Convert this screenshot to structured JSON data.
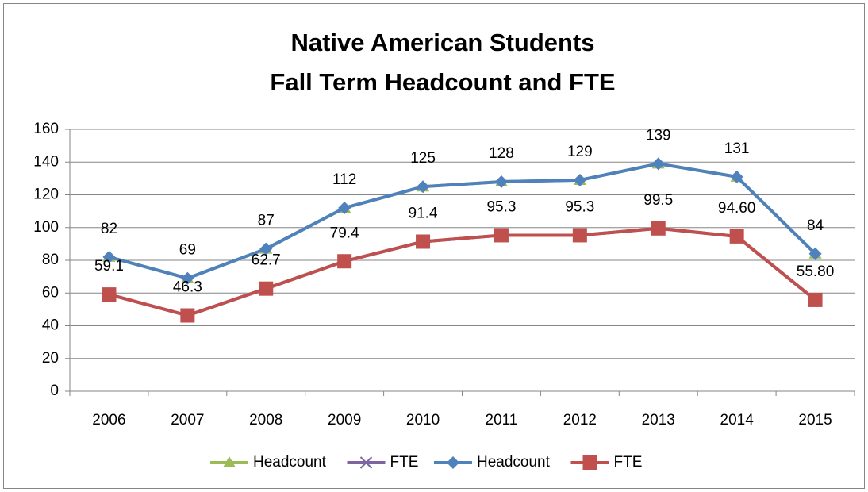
{
  "chart_data": {
    "type": "line",
    "title": [
      "Native American Students",
      "Fall Term Headcount and FTE"
    ],
    "categories": [
      "2006",
      "2007",
      "2008",
      "2009",
      "2010",
      "2011",
      "2012",
      "2013",
      "2014",
      "2015"
    ],
    "series": [
      {
        "name": "Headcount",
        "color": "#9bbb59",
        "marker": "triangle",
        "values": [
          82,
          69,
          87,
          112,
          125,
          128,
          129,
          139,
          131,
          84
        ]
      },
      {
        "name": "FTE",
        "color": "#8064a2",
        "marker": "x",
        "values": [
          59.1,
          46.3,
          62.7,
          79.4,
          91.4,
          95.3,
          95.3,
          99.5,
          94.6,
          55.8
        ]
      },
      {
        "name": "Headcount",
        "color": "#4f81bd",
        "marker": "diamond",
        "values": [
          82,
          69,
          87,
          112,
          125,
          128,
          129,
          139,
          131,
          84
        ]
      },
      {
        "name": "FTE",
        "color": "#c0504d",
        "marker": "square",
        "values": [
          59.1,
          46.3,
          62.7,
          79.4,
          91.4,
          95.3,
          95.3,
          99.5,
          94.6,
          55.8
        ],
        "value_labels": [
          "59.1",
          "46.3",
          "62.7",
          "79.4",
          "91.4",
          "95.3",
          "95.3",
          "99.5",
          "94.60",
          "55.80"
        ]
      }
    ],
    "labeled_series": [
      2,
      3
    ],
    "ylim": [
      0,
      160
    ],
    "yticks": [
      0,
      20,
      40,
      60,
      80,
      100,
      120,
      140,
      160
    ],
    "grid": true,
    "legend": "bottom"
  }
}
